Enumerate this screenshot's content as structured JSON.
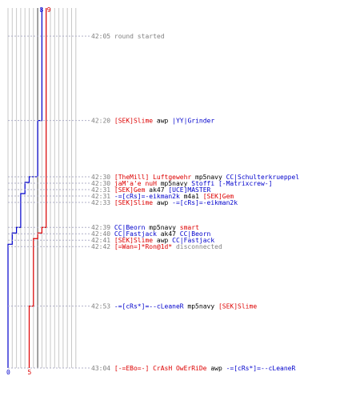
{
  "chart_data": {
    "type": "line",
    "title": "",
    "xlabel": "",
    "ylabel": "",
    "series": [
      {
        "color": "#0000cc",
        "start": 8,
        "end": 0,
        "steps": [
          {
            "t": "42:20",
            "v": 7
          },
          {
            "t": "42:30",
            "v": 6
          },
          {
            "t": "42:30",
            "v": 5
          },
          {
            "t": "42:31",
            "v": 4
          },
          {
            "t": "42:33",
            "v": 3
          },
          {
            "t": "42:39",
            "v": 2
          },
          {
            "t": "42:40",
            "v": 1
          },
          {
            "t": "42:42",
            "v": 0
          }
        ]
      },
      {
        "color": "#dd0000",
        "start": 9,
        "end": 5,
        "steps": [
          {
            "t": "42:39",
            "v": 8
          },
          {
            "t": "42:40",
            "v": 7
          },
          {
            "t": "42:41",
            "v": 6
          },
          {
            "t": "42:53",
            "v": 5
          }
        ]
      }
    ],
    "top_labels": [
      {
        "text": "8",
        "color": "#0000cc"
      },
      {
        "text": "9",
        "color": "#dd0000"
      }
    ],
    "bottom_labels": [
      {
        "text": "0",
        "color": "#0000cc"
      },
      {
        "text": "5",
        "color": "#dd0000"
      }
    ],
    "grid": true,
    "axis_color": "#000000"
  },
  "log": [
    {
      "time": "42:05",
      "t": 5,
      "parts": [
        {
          "text": "round started",
          "color": "#808080"
        }
      ]
    },
    {
      "time": "42:20",
      "t": 20,
      "parts": [
        {
          "text": "[SEK]Slime",
          "color": "#dd0000"
        },
        {
          "text": " awp ",
          "color": "#000000"
        },
        {
          "text": "|YY|Grinder",
          "color": "#0000cc"
        }
      ]
    },
    {
      "time": "42:30",
      "t": 30,
      "parts": [
        {
          "text": "[TheMill] Luftgewehr",
          "color": "#dd0000"
        },
        {
          "text": " mp5navy ",
          "color": "#000000"
        },
        {
          "text": "CC|Schulterkrueppel",
          "color": "#0000cc"
        }
      ]
    },
    {
      "time": "42:30",
      "t": 30,
      "parts": [
        {
          "text": "jaM'a'e nuH",
          "color": "#dd0000"
        },
        {
          "text": " mp5navy ",
          "color": "#000000"
        },
        {
          "text": "Stoffi [-Matrixcrew-]",
          "color": "#0000cc"
        }
      ]
    },
    {
      "time": "42:31",
      "t": 31,
      "parts": [
        {
          "text": "[SEK]Gem",
          "color": "#dd0000"
        },
        {
          "text": " ak47 ",
          "color": "#000000"
        },
        {
          "text": "[UCE]MASTER",
          "color": "#0000cc"
        }
      ]
    },
    {
      "time": "42:31",
      "t": 31,
      "parts": [
        {
          "text": "-=[cRs]=-eikman2k",
          "color": "#0000cc"
        },
        {
          "text": " m4a1 ",
          "color": "#000000"
        },
        {
          "text": "[SEK]Gem",
          "color": "#dd0000"
        }
      ]
    },
    {
      "time": "42:33",
      "t": 33,
      "parts": [
        {
          "text": "[SEK]Slime",
          "color": "#dd0000"
        },
        {
          "text": " awp ",
          "color": "#000000"
        },
        {
          "text": "-=[cRs]=-eikman2k",
          "color": "#0000cc"
        }
      ]
    },
    {
      "time": "42:39",
      "t": 39,
      "parts": [
        {
          "text": "CC|Beorn",
          "color": "#0000cc"
        },
        {
          "text": " mp5navy ",
          "color": "#000000"
        },
        {
          "text": "smart",
          "color": "#dd0000"
        }
      ]
    },
    {
      "time": "42:40",
      "t": 40,
      "parts": [
        {
          "text": "CC|Fastjack",
          "color": "#0000cc"
        },
        {
          "text": " ak47 ",
          "color": "#000000"
        },
        {
          "text": "CC|Beorn",
          "color": "#0000cc"
        }
      ]
    },
    {
      "time": "42:41",
      "t": 41,
      "parts": [
        {
          "text": "[SEK]Slime",
          "color": "#dd0000"
        },
        {
          "text": " awp ",
          "color": "#000000"
        },
        {
          "text": "CC|Fastjack",
          "color": "#0000cc"
        }
      ]
    },
    {
      "time": "42:42",
      "t": 42,
      "parts": [
        {
          "text": "[=Wan=]*Ron@1d*",
          "color": "#dd0000"
        },
        {
          "text": " disconnected",
          "color": "#808080"
        }
      ]
    },
    {
      "time": "42:53",
      "t": 53,
      "parts": [
        {
          "text": "-=[cRs*]=--cLeaneR",
          "color": "#0000cc"
        },
        {
          "text": " mp5navy ",
          "color": "#000000"
        },
        {
          "text": "[SEK]Slime",
          "color": "#dd0000"
        }
      ]
    },
    {
      "time": "43:04",
      "t": 64,
      "parts": [
        {
          "text": "[-=EBo=-] CrAsH OwErRiDe",
          "color": "#dd0000"
        },
        {
          "text": " awp ",
          "color": "#000000"
        },
        {
          "text": "-=[cRs*]=--cLeaneR",
          "color": "#0000cc"
        }
      ]
    }
  ]
}
